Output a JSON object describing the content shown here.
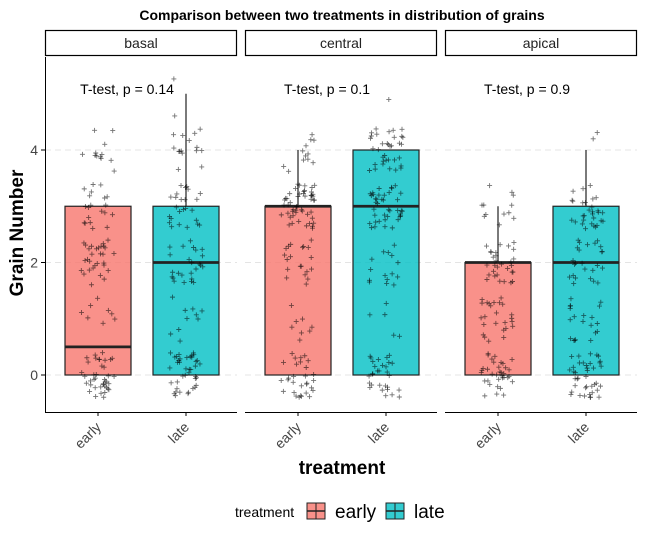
{
  "chart_data": {
    "type": "box",
    "title": "Comparison between two treatments in distribution of grains",
    "xlabel": "treatment",
    "ylabel": "Grain Number",
    "ylim": [
      -0.65,
      5.6
    ],
    "yticks": [
      0,
      2,
      4
    ],
    "grid": "horizontal dashed",
    "categories": [
      "early",
      "late"
    ],
    "panels": [
      {
        "name": "basal",
        "annotation": "T-test, p = 0.14",
        "boxes": [
          {
            "group": "early",
            "q1": 0,
            "median": 0.5,
            "q3": 3,
            "whisker_low": 0,
            "whisker_high": 3
          },
          {
            "group": "late",
            "q1": 0,
            "median": 2,
            "q3": 3,
            "whisker_low": 0,
            "whisker_high": 5
          }
        ]
      },
      {
        "name": "central",
        "annotation": "T-test, p = 0.1",
        "boxes": [
          {
            "group": "early",
            "q1": 0,
            "median": 3,
            "q3": 3,
            "whisker_low": 0,
            "whisker_high": 4
          },
          {
            "group": "late",
            "q1": 0,
            "median": 3,
            "q3": 4,
            "whisker_low": 0,
            "whisker_high": 4
          }
        ]
      },
      {
        "name": "apical",
        "annotation": "T-test, p = 0.9",
        "boxes": [
          {
            "group": "early",
            "q1": 0,
            "median": 2,
            "q3": 2,
            "whisker_low": 0,
            "whisker_high": 3
          },
          {
            "group": "late",
            "q1": 0,
            "median": 2,
            "q3": 3,
            "whisker_low": 0,
            "whisker_high": 4
          }
        ]
      }
    ],
    "jitter_counts": [
      {
        "early": [
          40,
          8,
          30,
          20,
          12,
          0
        ],
        "late": [
          40,
          10,
          25,
          25,
          15,
          2
        ]
      },
      {
        "early": [
          30,
          8,
          20,
          50,
          12,
          0
        ],
        "late": [
          30,
          5,
          15,
          40,
          35,
          1
        ]
      },
      {
        "early": [
          35,
          25,
          30,
          12,
          0,
          0
        ],
        "late": [
          40,
          20,
          25,
          30,
          2,
          0
        ]
      }
    ],
    "legend": {
      "title": "treatment",
      "position": "bottom",
      "entries": [
        {
          "label": "early",
          "color": "#F8766D"
        },
        {
          "label": "late",
          "color": "#00BFC4"
        }
      ]
    }
  }
}
